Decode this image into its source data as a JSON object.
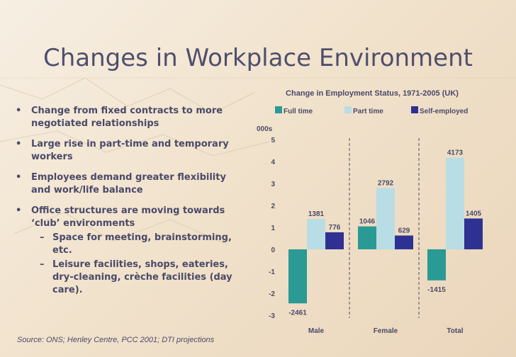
{
  "slide": {
    "title": "Changes in Workplace Environment",
    "source": "Source: ONS; Henley Centre, PCC 2001; DTI projections"
  },
  "bullets": [
    {
      "text": "Change from fixed contracts to more negotiated relationships",
      "subs": []
    },
    {
      "text": "Large rise in part-time and temporary workers",
      "subs": []
    },
    {
      "text": "Employees demand greater flexibility and work/life balance",
      "subs": []
    },
    {
      "text": "Office structures are moving towards ‘club’ environments",
      "subs": [
        "Space for meeting, brainstorming, etc.",
        "Leisure facilities, shops, eateries, dry-cleaning, crèche facilities (day care)."
      ]
    }
  ],
  "bullet_marker": "•",
  "sub_marker": "–",
  "chart_data": {
    "type": "bar",
    "title": "Change in Employment Status, 1971-2005 (UK)",
    "ylabel": "000s",
    "ylim": [
      -3,
      5
    ],
    "yticks": [
      5,
      4,
      3,
      2,
      1,
      0,
      -1,
      -2,
      -3
    ],
    "categories": [
      "Male",
      "Female",
      "Total"
    ],
    "series": [
      {
        "name": "Full time",
        "color": "#2a9a94",
        "values": [
          -2461,
          1046,
          -1415
        ]
      },
      {
        "name": "Part time",
        "color": "#b8dde4",
        "values": [
          1381,
          2792,
          4173
        ]
      },
      {
        "name": "Self-employed",
        "color": "#2e3192",
        "values": [
          776,
          629,
          1405
        ]
      }
    ]
  }
}
